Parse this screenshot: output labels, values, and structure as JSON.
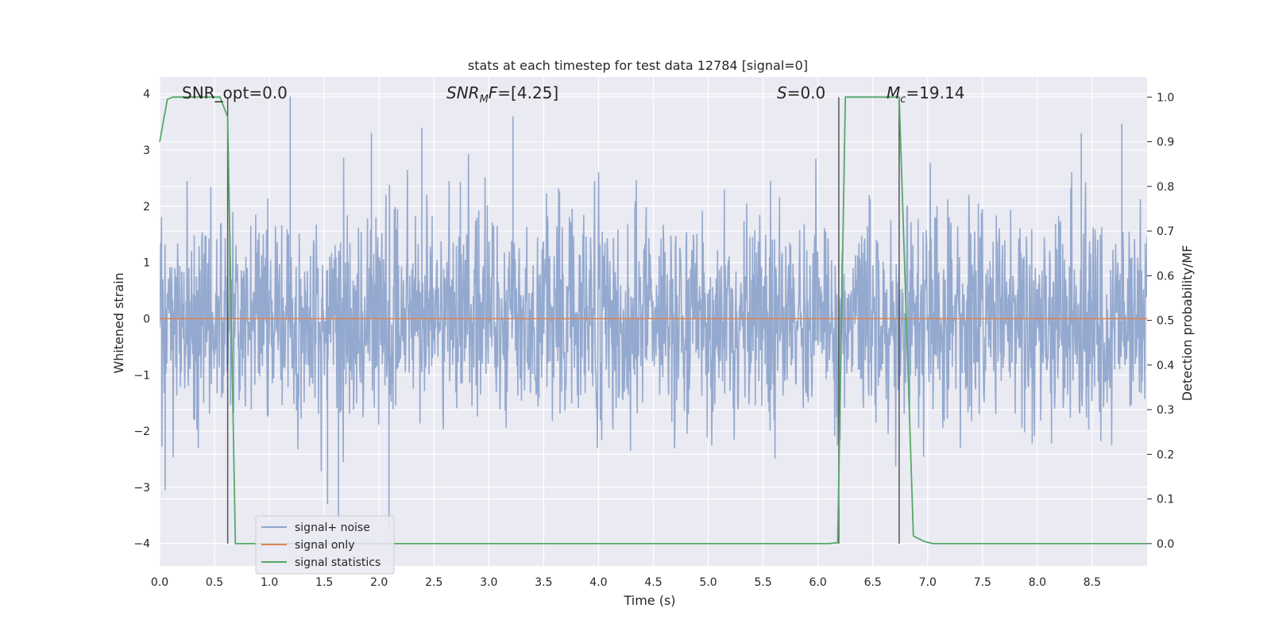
{
  "chart_data": {
    "type": "line",
    "title": "stats at each timestep for test data 12784 [signal=0]",
    "xlabel": "Time (s)",
    "ylabel": "Whitened strain",
    "y2label": "Detection probability/MF",
    "xlim": [
      0.0,
      9.0
    ],
    "ylim": [
      -4.4,
      4.3
    ],
    "y2lim": [
      -0.05,
      1.045
    ],
    "xticks": [
      "0.0",
      "0.5",
      "1.0",
      "1.5",
      "2.0",
      "2.5",
      "3.0",
      "3.5",
      "4.0",
      "4.5",
      "5.0",
      "5.5",
      "6.0",
      "6.5",
      "7.0",
      "7.5",
      "8.0",
      "8.5"
    ],
    "yticks": [
      "4",
      "3",
      "2",
      "1",
      "0",
      "−1",
      "−2",
      "−3",
      "−4"
    ],
    "y2ticks": [
      "1.0",
      "0.9",
      "0.8",
      "0.7",
      "0.6",
      "0.5",
      "0.4",
      "0.3",
      "0.2",
      "0.1",
      "0.0"
    ],
    "grid": true,
    "legend_position": "lower-left",
    "annotations": {
      "snr_opt": "SNR_opt=0.0",
      "snr_mf_base": "SNR",
      "snr_mf_sub": "M",
      "snr_mf_tail": "F",
      "snr_mf_value": "=[4.25]",
      "s_sym": "S",
      "s_value": "=0.0",
      "mc_sym": "M",
      "mc_sub": "c",
      "mc_value": "=19.14"
    },
    "series": [
      {
        "name": "signal+ noise",
        "color": "#8fa5cc",
        "description_kind": "noise",
        "envelope_upper": 2.4,
        "envelope_lower": -2.3,
        "notable_peaks": [
          {
            "x": 1.19,
            "y": 3.95
          },
          {
            "x": 3.22,
            "y": 3.6
          },
          {
            "x": 8.77,
            "y": 3.47
          },
          {
            "x": 1.93,
            "y": 3.3
          },
          {
            "x": 2.39,
            "y": 3.4
          },
          {
            "x": 8.4,
            "y": 3.3
          }
        ],
        "notable_troughs": [
          {
            "x": 1.63,
            "y": -3.55
          },
          {
            "x": 2.09,
            "y": -3.75
          },
          {
            "x": 1.53,
            "y": -3.3
          },
          {
            "x": 0.05,
            "y": -3.05
          }
        ]
      },
      {
        "name": "signal only",
        "color": "#dd8452",
        "x": [
          0.0,
          9.0
        ],
        "y": [
          0.0,
          0.0
        ]
      },
      {
        "name": "signal statistics",
        "color": "#55a868",
        "axis": "right",
        "x": [
          0.0,
          0.07,
          0.12,
          0.55,
          0.62,
          0.69,
          6.1,
          6.18,
          6.25,
          6.74,
          6.87,
          6.97,
          7.05,
          9.0
        ],
        "y": [
          0.9,
          0.995,
          1.0,
          1.0,
          0.955,
          0.0,
          0.0,
          0.002,
          1.0,
          1.0,
          0.017,
          0.005,
          0.0,
          0.0
        ]
      }
    ],
    "vlines": [
      0.62,
      6.19,
      6.74
    ]
  },
  "legend": [
    {
      "label": "signal+ noise",
      "color": "#8fa5cc"
    },
    {
      "label": "signal only",
      "color": "#dd8452"
    },
    {
      "label": "signal statistics",
      "color": "#55a868"
    }
  ]
}
